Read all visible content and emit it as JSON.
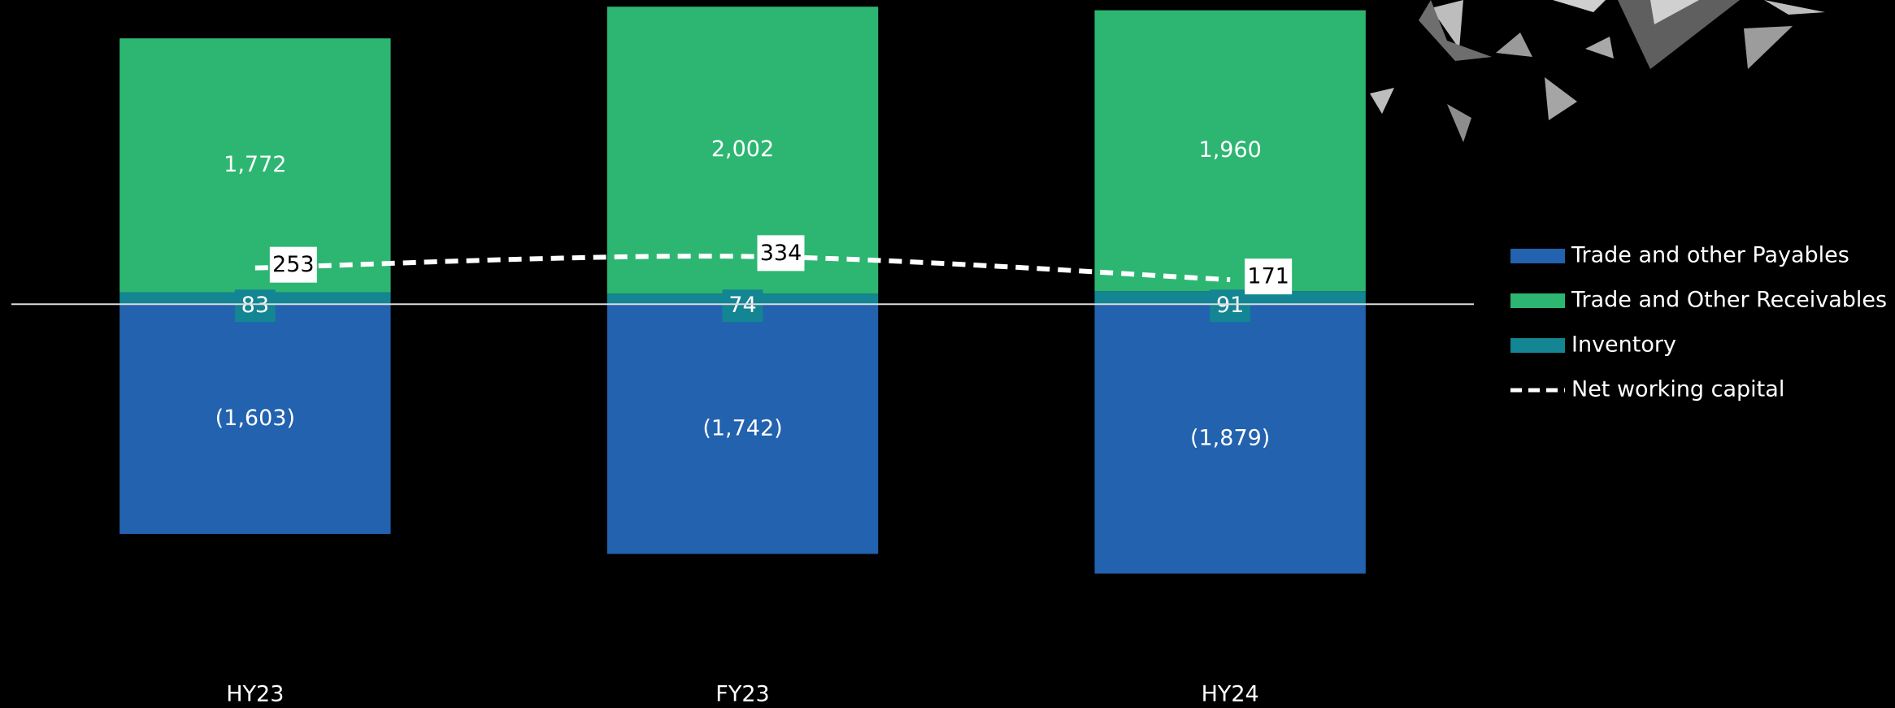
{
  "chart_data": {
    "type": "bar",
    "stacked": true,
    "categories": [
      "HY23",
      "FY23",
      "HY24"
    ],
    "series": [
      {
        "name": "Trade and other Payables",
        "color": "#2262ae",
        "values": [
          -1603,
          -1742,
          -1879
        ],
        "value_labels": [
          "(1,603)",
          "(1,742)",
          "(1,879)"
        ]
      },
      {
        "name": "Trade and Other Receivables",
        "color": "#2db672",
        "values": [
          1772,
          2002,
          1960
        ],
        "value_labels": [
          "1,772",
          "2,002",
          "1,960"
        ]
      },
      {
        "name": "Inventory",
        "color": "#138593",
        "values": [
          83,
          74,
          91
        ]
      },
      {
        "name": "Net working capital",
        "type": "line",
        "color": "#ffffff",
        "dashed": true,
        "values": [
          253,
          334,
          171
        ]
      }
    ],
    "ylim": [
      -2800,
      2100
    ],
    "legend": "right"
  }
}
